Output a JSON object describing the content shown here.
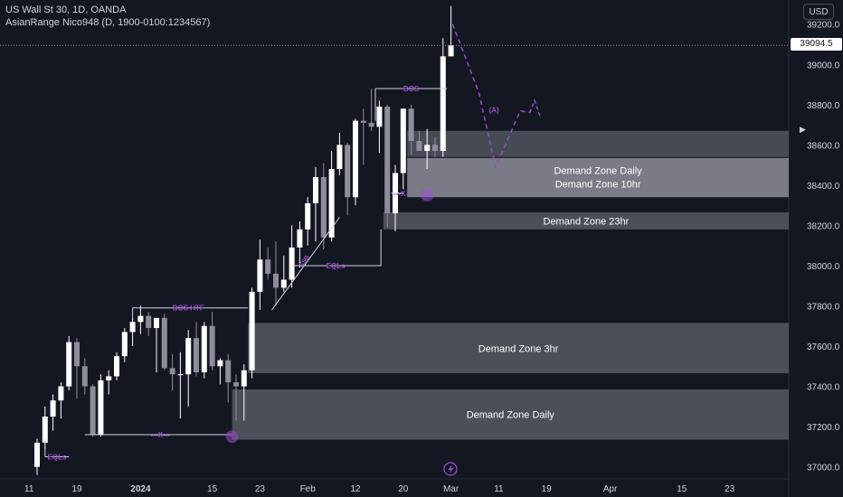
{
  "header": {
    "title": "US Wall St 30, 1D, OANDA",
    "indicator": "AsianRange Nico948 (D, 1900-0100:1234567)",
    "currency": "USD",
    "last_price": "39094.5"
  },
  "chart_data": {
    "type": "candlestick",
    "instrument": "US Wall St 30",
    "timeframe": "1D",
    "broker": "OANDA",
    "ylim": [
      36940,
      39320
    ],
    "yticks": [
      37000,
      37200,
      37400,
      37600,
      37800,
      38000,
      38200,
      38400,
      38600,
      38800,
      39000,
      39200
    ],
    "ytick_labels": [
      "37000.0",
      "37200.0",
      "37400.0",
      "37600.0",
      "37800.0",
      "38000.0",
      "38200.0",
      "38400.0",
      "38600.0",
      "38800.0",
      "39000.0",
      "39200.0"
    ],
    "x_slot_range": [
      -2,
      53
    ],
    "xticks": [
      {
        "label": "11",
        "slot": -1
      },
      {
        "label": "19",
        "slot": 5
      },
      {
        "label": "2024",
        "slot": 13
      },
      {
        "label": "15",
        "slot": 22
      },
      {
        "label": "23",
        "slot": 28
      },
      {
        "label": "Feb",
        "slot": 34
      },
      {
        "label": "12",
        "slot": 40
      },
      {
        "label": "20",
        "slot": 46
      },
      {
        "label": "Mar",
        "slot": 52
      },
      {
        "label": "11",
        "slot": 58
      },
      {
        "label": "19",
        "slot": 64
      },
      {
        "label": "Apr",
        "slot": 72
      },
      {
        "label": "15",
        "slot": 81
      },
      {
        "label": "23",
        "slot": 87
      }
    ],
    "colors": {
      "up": "#ffffff",
      "down": "#8c8f99",
      "zone": "#a0a4ad",
      "annotation": "#9c4dcc"
    },
    "candles": [
      {
        "o": 37000,
        "h": 37140,
        "l": 36960,
        "c": 37120
      },
      {
        "o": 37120,
        "h": 37300,
        "l": 37090,
        "c": 37250
      },
      {
        "o": 37250,
        "h": 37360,
        "l": 37180,
        "c": 37330
      },
      {
        "o": 37330,
        "h": 37420,
        "l": 37240,
        "c": 37400
      },
      {
        "o": 37400,
        "h": 37650,
        "l": 37380,
        "c": 37620
      },
      {
        "o": 37620,
        "h": 37640,
        "l": 37340,
        "c": 37500
      },
      {
        "o": 37500,
        "h": 37540,
        "l": 37360,
        "c": 37400
      },
      {
        "o": 37400,
        "h": 37410,
        "l": 37150,
        "c": 37160
      },
      {
        "o": 37160,
        "h": 37460,
        "l": 37150,
        "c": 37430
      },
      {
        "o": 37430,
        "h": 37480,
        "l": 37360,
        "c": 37450
      },
      {
        "o": 37450,
        "h": 37570,
        "l": 37430,
        "c": 37550
      },
      {
        "o": 37550,
        "h": 37690,
        "l": 37520,
        "c": 37670
      },
      {
        "o": 37670,
        "h": 37740,
        "l": 37600,
        "c": 37720
      },
      {
        "o": 37720,
        "h": 37800,
        "l": 37660,
        "c": 37750
      },
      {
        "o": 37750,
        "h": 37770,
        "l": 37650,
        "c": 37690
      },
      {
        "o": 37690,
        "h": 37730,
        "l": 37470,
        "c": 37740
      },
      {
        "o": 37740,
        "h": 37760,
        "l": 37480,
        "c": 37490
      },
      {
        "o": 37490,
        "h": 37560,
        "l": 37380,
        "c": 37460
      },
      {
        "o": 37460,
        "h": 37570,
        "l": 37240,
        "c": 37460
      },
      {
        "o": 37460,
        "h": 37680,
        "l": 37300,
        "c": 37640
      },
      {
        "o": 37640,
        "h": 37720,
        "l": 37450,
        "c": 37470
      },
      {
        "o": 37470,
        "h": 37720,
        "l": 37440,
        "c": 37700
      },
      {
        "o": 37700,
        "h": 37770,
        "l": 37480,
        "c": 37500
      },
      {
        "o": 37500,
        "h": 37540,
        "l": 37410,
        "c": 37530
      },
      {
        "o": 37530,
        "h": 37560,
        "l": 37320,
        "c": 37420
      },
      {
        "o": 37420,
        "h": 37460,
        "l": 37230,
        "c": 37400
      },
      {
        "o": 37400,
        "h": 37510,
        "l": 37230,
        "c": 37480
      },
      {
        "o": 37480,
        "h": 37890,
        "l": 37440,
        "c": 37870
      },
      {
        "o": 37870,
        "h": 38130,
        "l": 37780,
        "c": 38030
      },
      {
        "o": 38030,
        "h": 38090,
        "l": 37930,
        "c": 37960
      },
      {
        "o": 37960,
        "h": 38120,
        "l": 37800,
        "c": 37890
      },
      {
        "o": 37890,
        "h": 38050,
        "l": 37870,
        "c": 37930
      },
      {
        "o": 37930,
        "h": 38200,
        "l": 37890,
        "c": 38090
      },
      {
        "o": 38090,
        "h": 38220,
        "l": 37990,
        "c": 38180
      },
      {
        "o": 38180,
        "h": 38340,
        "l": 38100,
        "c": 38310
      },
      {
        "o": 38310,
        "h": 38490,
        "l": 38120,
        "c": 38440
      },
      {
        "o": 38440,
        "h": 38510,
        "l": 38080,
        "c": 38140
      },
      {
        "o": 38140,
        "h": 38570,
        "l": 38120,
        "c": 38480
      },
      {
        "o": 38480,
        "h": 38660,
        "l": 38450,
        "c": 38600
      },
      {
        "o": 38600,
        "h": 38610,
        "l": 38250,
        "c": 38340
      },
      {
        "o": 38340,
        "h": 38730,
        "l": 38300,
        "c": 38720
      },
      {
        "o": 38720,
        "h": 38780,
        "l": 38500,
        "c": 38710
      },
      {
        "o": 38710,
        "h": 38880,
        "l": 38670,
        "c": 38690
      },
      {
        "o": 38690,
        "h": 38820,
        "l": 38560,
        "c": 38790
      },
      {
        "o": 38790,
        "h": 38800,
        "l": 38190,
        "c": 38260
      },
      {
        "o": 38260,
        "h": 38500,
        "l": 38170,
        "c": 38460
      },
      {
        "o": 38460,
        "h": 38780,
        "l": 38380,
        "c": 38780
      },
      {
        "o": 38780,
        "h": 38800,
        "l": 38550,
        "c": 38620
      },
      {
        "o": 38620,
        "h": 38670,
        "l": 38570,
        "c": 38570
      },
      {
        "o": 38570,
        "h": 38680,
        "l": 38480,
        "c": 38600
      },
      {
        "o": 38600,
        "h": 38640,
        "l": 38540,
        "c": 38570
      },
      {
        "o": 38570,
        "h": 39130,
        "l": 38540,
        "c": 39040
      },
      {
        "o": 39040,
        "h": 39290,
        "l": 39040,
        "c": 39094.5
      }
    ],
    "zones": [
      {
        "label": "",
        "from_slot": 46.5,
        "top": 38670,
        "bottom": 38540
      },
      {
        "label": "Demand Zone Daily",
        "label2": "Demand Zone 10hr",
        "from_slot": 46.5,
        "top": 38535,
        "bottom": 38340
      },
      {
        "label": "Demand Zone 23hr",
        "from_slot": 43.5,
        "top": 38265,
        "bottom": 38180
      },
      {
        "label": "Demand Zone 3hr",
        "from_slot": 26.5,
        "top": 37715,
        "bottom": 37465
      },
      {
        "label": "Demand Zone Daily",
        "from_slot": 24.5,
        "top": 37385,
        "bottom": 37135
      }
    ],
    "annotations": {
      "eqls_1": "EQLs",
      "x_marker_1": "---X---",
      "bos_htf": "BOS HTF",
      "eqls_2": "EQLs",
      "ssb": "SSB",
      "bos": "BOS",
      "x_marker_2": "---X---",
      "wave": "(A)"
    }
  }
}
